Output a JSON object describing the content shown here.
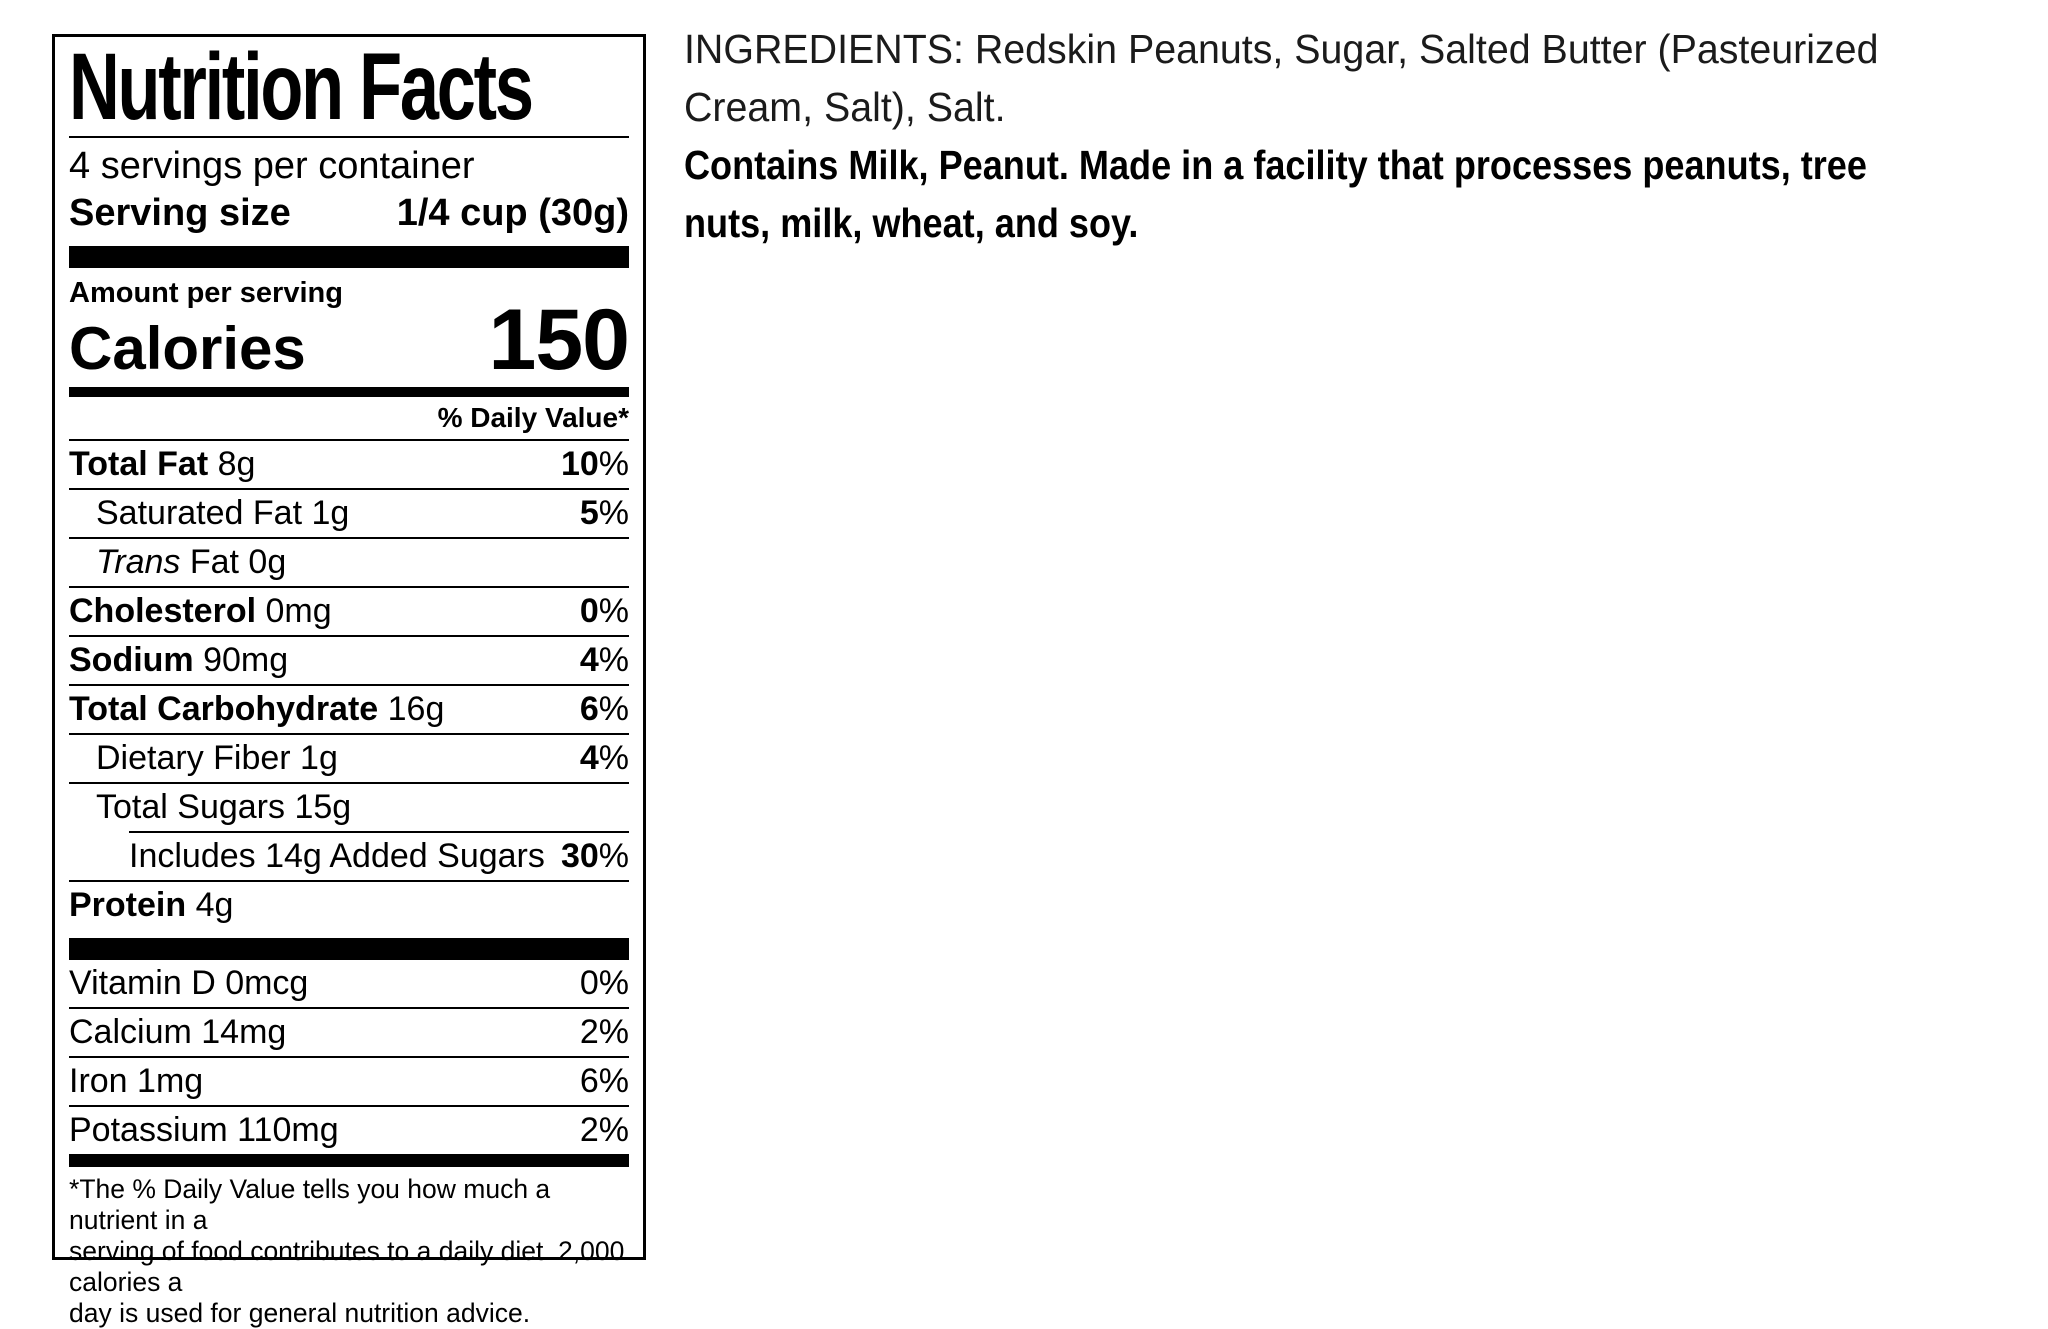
{
  "colors": {
    "text": "#000000",
    "background": "#ffffff"
  },
  "nutrition_label": {
    "title": "Nutrition Facts",
    "servings_per_container": "4 servings per container",
    "serving_size": {
      "label": "Serving size",
      "value": "1/4 cup (30g)"
    },
    "amount_per_serving": "Amount per serving",
    "calories": {
      "label": "Calories",
      "value": "150"
    },
    "daily_value_header": "% Daily Value*",
    "nutrients": [
      {
        "bold": "Total Fat",
        "rest": " 8g",
        "dv_num": "10",
        "dv_sign": "%"
      },
      {
        "bold": "",
        "rest": "Saturated Fat 1g",
        "dv_num": "5",
        "dv_sign": "%"
      },
      {
        "italic": "Trans",
        "rest": " Fat 0g",
        "dv_num": "",
        "dv_sign": ""
      },
      {
        "bold": "Cholesterol",
        "rest": " 0mg",
        "dv_num": "0",
        "dv_sign": "%"
      },
      {
        "bold": "Sodium",
        "rest": " 90mg",
        "dv_num": "4",
        "dv_sign": "%"
      },
      {
        "bold": "Total Carbohydrate",
        "rest": " 16g",
        "dv_num": "6",
        "dv_sign": "%"
      },
      {
        "bold": "",
        "rest": "Dietary Fiber 1g",
        "dv_num": "4",
        "dv_sign": "%"
      },
      {
        "bold": "",
        "rest": "Total Sugars 15g",
        "dv_num": "",
        "dv_sign": ""
      },
      {
        "bold": "",
        "rest": "Includes 14g Added Sugars",
        "dv_num": "30",
        "dv_sign": "%"
      },
      {
        "bold": "Protein",
        "rest": " 4g",
        "dv_num": "",
        "dv_sign": ""
      }
    ],
    "micronutrients": [
      {
        "text": "Vitamin D 0mcg",
        "dv": "0%"
      },
      {
        "text": "Calcium 14mg",
        "dv": "2%"
      },
      {
        "text": "Iron 1mg",
        "dv": "6%"
      },
      {
        "text": "Potassium 110mg",
        "dv": "2%"
      }
    ],
    "footnote_lines": [
      "*The % Daily Value tells you how much a nutrient in a",
      "serving of food contributes to a daily diet. 2,000 calories a",
      "day is used for general nutrition advice."
    ]
  },
  "ingredients_panel": {
    "statement_lines": [
      "INGREDIENTS: Redskin Peanuts, Sugar, Salted Butter (Pasteurized",
      "Cream, Salt), Salt."
    ],
    "allergen_lines": [
      "Contains Milk, Peanut. Made in a facility that processes peanuts, tree",
      "nuts, milk, wheat, and soy."
    ]
  }
}
